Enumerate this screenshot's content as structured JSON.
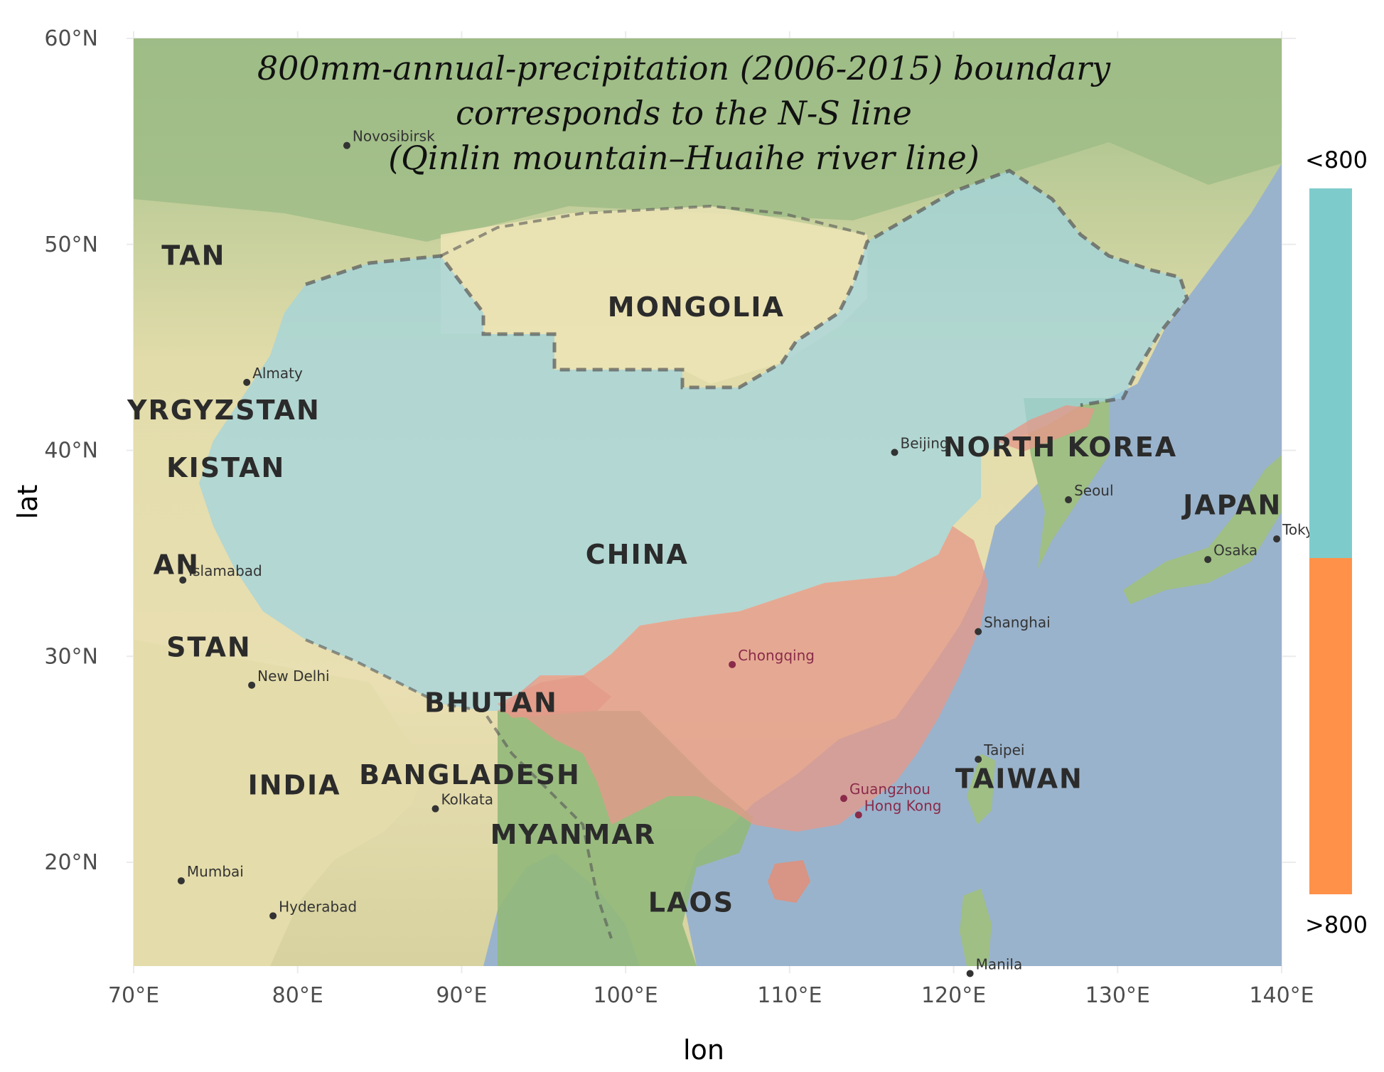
{
  "title": {
    "lines": [
      "800mm-annual-precipitation (2006-2015) boundary",
      "corresponds to the N-S line",
      "(Qinlin mountain–Huaihe river line)"
    ]
  },
  "axes": {
    "x_title": "lon",
    "y_title": "lat",
    "x_ticks": [
      "70°E",
      "80°E",
      "90°E",
      "100°E",
      "110°E",
      "120°E",
      "130°E",
      "140°E"
    ],
    "y_ticks": [
      "20°N",
      "30°N",
      "40°N",
      "50°N",
      "60°N"
    ],
    "x_range": [
      70,
      140
    ],
    "y_range": [
      15,
      60
    ]
  },
  "legend": {
    "top_label": "<800",
    "bottom_label": ">800",
    "colors": {
      "below_800": "#7ecbcb",
      "above_800": "#ff9149"
    }
  },
  "colors": {
    "ocean": "#9ab3cc",
    "land_low": "#e8e2b0",
    "land_green": "#8fb67b",
    "below_800_overlay": "#9fd4e0",
    "above_800_overlay": "#e49a8a",
    "panel_grid": "#ebebeb"
  },
  "map_labels": {
    "countries": [
      {
        "name": "MONGOLIA",
        "lon": 104.3,
        "lat": 46.5
      },
      {
        "name": "CHINA",
        "lon": 100.7,
        "lat": 34.5
      },
      {
        "name": "NORTH KOREA",
        "lon": 126.5,
        "lat": 39.7
      },
      {
        "name": "JAPAN",
        "lon": 137.0,
        "lat": 36.9
      },
      {
        "name": "TAIWAN",
        "lon": 124.0,
        "lat": 23.6
      },
      {
        "name": "INDIA",
        "lon": 79.8,
        "lat": 23.3
      },
      {
        "name": "BANGLADESH",
        "lon": 90.5,
        "lat": 23.8
      },
      {
        "name": "MYANMAR",
        "lon": 96.8,
        "lat": 20.9
      },
      {
        "name": "LAOS",
        "lon": 104.0,
        "lat": 17.6
      },
      {
        "name": "BHUTAN",
        "lon": 91.8,
        "lat": 27.3
      },
      {
        "name": "TAN",
        "lon": 71.7,
        "lat": 49.0
      },
      {
        "name": "YRGYZSTAN",
        "lon": 75.5,
        "lat": 41.5
      },
      {
        "name": "KISTAN",
        "lon": 72.0,
        "lat": 38.7
      },
      {
        "name": "AN",
        "lon": 71.2,
        "lat": 34.0
      },
      {
        "name": "STAN",
        "lon": 72.0,
        "lat": 30.0
      }
    ],
    "cities": [
      {
        "name": "Novosibirsk",
        "lon": 83.0,
        "lat": 54.8,
        "style": "dark"
      },
      {
        "name": "Almaty",
        "lon": 76.9,
        "lat": 43.3,
        "style": "dark"
      },
      {
        "name": "Islamabad",
        "lon": 73.0,
        "lat": 33.7,
        "style": "dark"
      },
      {
        "name": "New Delhi",
        "lon": 77.2,
        "lat": 28.6,
        "style": "dark"
      },
      {
        "name": "Kolkata",
        "lon": 88.4,
        "lat": 22.6,
        "style": "dark"
      },
      {
        "name": "Mumbai",
        "lon": 72.9,
        "lat": 19.1,
        "style": "dark"
      },
      {
        "name": "Hyderabad",
        "lon": 78.5,
        "lat": 17.4,
        "style": "dark"
      },
      {
        "name": "Beijing",
        "lon": 116.4,
        "lat": 39.9,
        "style": "dark"
      },
      {
        "name": "Seoul",
        "lon": 127.0,
        "lat": 37.6,
        "style": "dark"
      },
      {
        "name": "Tokyo",
        "lon": 139.7,
        "lat": 35.7,
        "style": "dark"
      },
      {
        "name": "Osaka",
        "lon": 135.5,
        "lat": 34.7,
        "style": "dark"
      },
      {
        "name": "Shanghai",
        "lon": 121.5,
        "lat": 31.2,
        "style": "dark"
      },
      {
        "name": "Chongqing",
        "lon": 106.5,
        "lat": 29.6,
        "style": "red"
      },
      {
        "name": "Taipei",
        "lon": 121.5,
        "lat": 25.0,
        "style": "dark"
      },
      {
        "name": "Guangzhou",
        "lon": 113.3,
        "lat": 23.1,
        "style": "red"
      },
      {
        "name": "Hong Kong",
        "lon": 114.2,
        "lat": 22.3,
        "style": "red"
      },
      {
        "name": "Manila",
        "lon": 121.0,
        "lat": 14.6,
        "style": "dark"
      }
    ]
  }
}
